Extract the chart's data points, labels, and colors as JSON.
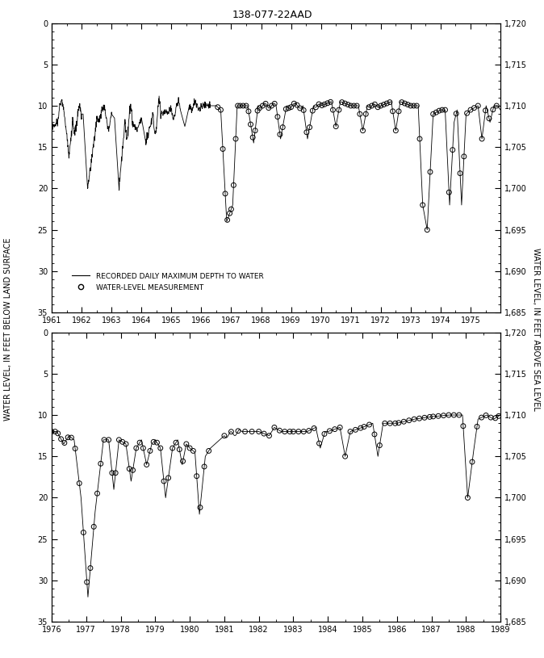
{
  "title": "138-077-22AAD",
  "ylabel_left": "WATER LEVEL, IN FEET BELOW LAND SURFACE",
  "ylabel_right": "WATER LEVEL, IN FEET ABOVE SEA LEVEL",
  "subplot1": {
    "xlim": [
      1961,
      1976
    ],
    "ylim_left": [
      35,
      0
    ],
    "ylim_right": [
      1685,
      1720
    ],
    "xticks": [
      1961,
      1962,
      1963,
      1964,
      1965,
      1966,
      1967,
      1968,
      1969,
      1970,
      1971,
      1972,
      1973,
      1974,
      1975
    ],
    "yticks_left": [
      0,
      5,
      10,
      15,
      20,
      25,
      30,
      35
    ],
    "yticks_right": [
      1685,
      1690,
      1695,
      1700,
      1705,
      1710,
      1715,
      1720
    ]
  },
  "subplot2": {
    "xlim": [
      1976,
      1989
    ],
    "ylim_left": [
      35,
      0
    ],
    "ylim_right": [
      1685,
      1720
    ],
    "xticks": [
      1976,
      1977,
      1978,
      1979,
      1980,
      1981,
      1982,
      1983,
      1984,
      1985,
      1986,
      1987,
      1988,
      1989
    ],
    "yticks_left": [
      0,
      5,
      10,
      15,
      20,
      25,
      30,
      35
    ],
    "yticks_right": [
      1685,
      1690,
      1695,
      1700,
      1705,
      1710,
      1715,
      1720
    ]
  },
  "line_color": "black",
  "dot_color": "black",
  "dot_marker": "o",
  "dot_size": 18,
  "line_style": "-",
  "line_width": 0.6,
  "legend_line_label": "RECORDED DAILY MAXIMUM DEPTH TO WATER",
  "legend_dot_label": "WATER-LEVEL MEASUREMENT",
  "background_color": "white",
  "title_fontsize": 9,
  "axis_fontsize": 7,
  "label_fontsize": 7
}
